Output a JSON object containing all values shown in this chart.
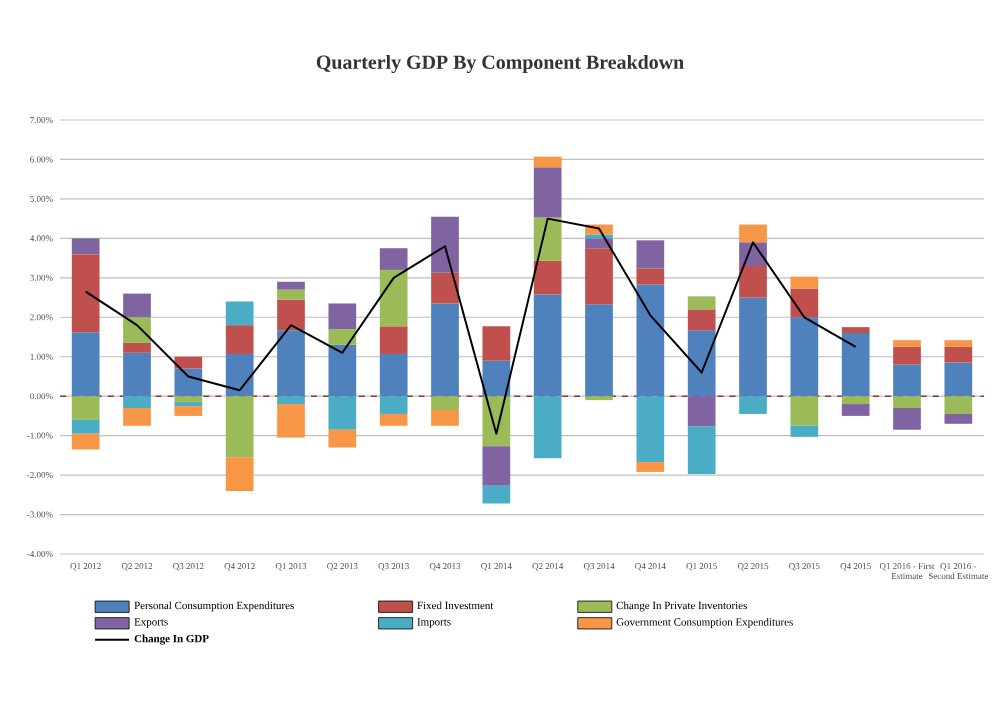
{
  "chart_data": {
    "type": "bar",
    "stacked": true,
    "title": "Quarterly GDP By Component Breakdown",
    "categories": [
      "Q1 2012",
      "Q2 2012",
      "Q3 2012",
      "Q4 2012",
      "Q1 2013",
      "Q2 2013",
      "Q3 2013",
      "Q4 2013",
      "Q1 2014",
      "Q2 2014",
      "Q3 2014",
      "Q4 2014",
      "Q1 2015",
      "Q2 2015",
      "Q3 2015",
      "Q4 2015",
      "Q1 2016 - First Estimate",
      "Q1 2016 - Second Estimate"
    ],
    "series": [
      {
        "name": "Personal Consumption Expenditures",
        "color": "#4f81bd",
        "values": [
          1.62,
          1.1,
          0.7,
          1.07,
          1.67,
          1.3,
          1.07,
          2.35,
          0.9,
          2.58,
          2.33,
          2.83,
          1.67,
          2.5,
          2.0,
          1.6,
          0.8,
          0.85
        ]
      },
      {
        "name": "Fixed Investment",
        "color": "#c0504d",
        "values": [
          1.98,
          0.25,
          0.3,
          0.73,
          0.78,
          null,
          0.7,
          0.78,
          0.87,
          0.85,
          1.42,
          0.41,
          0.53,
          0.8,
          0.73,
          0.15,
          0.45,
          0.4
        ]
      },
      {
        "name": "Change In Private Inventories",
        "color": "#9bbb59",
        "values": [
          -0.6,
          0.65,
          -0.15,
          -1.55,
          0.25,
          0.4,
          1.43,
          -0.35,
          -1.27,
          1.1,
          -0.1,
          null,
          0.33,
          null,
          -0.75,
          -0.2,
          -0.3,
          -0.45
        ]
      },
      {
        "name": "Exports",
        "color": "#8064a2",
        "values": [
          0.4,
          0.6,
          null,
          null,
          0.2,
          0.65,
          0.55,
          1.42,
          -1.0,
          1.27,
          0.25,
          0.71,
          -0.77,
          0.6,
          null,
          -0.3,
          -0.55,
          -0.25
        ]
      },
      {
        "name": "Imports",
        "color": "#4bacc6",
        "values": [
          -0.35,
          -0.3,
          -0.1,
          0.6,
          -0.2,
          -0.85,
          -0.45,
          null,
          -0.45,
          -1.57,
          0.1,
          -1.67,
          -1.2,
          -0.45,
          -0.28,
          null,
          null,
          null
        ]
      },
      {
        "name": "Government Consumption Expenditures",
        "color": "#f79646",
        "values": [
          -0.4,
          -0.45,
          -0.25,
          -0.85,
          -0.85,
          -0.45,
          -0.3,
          -0.4,
          null,
          0.27,
          0.25,
          -0.25,
          null,
          0.45,
          0.3,
          null,
          0.17,
          0.17
        ]
      },
      {
        "name": "Change In GDP",
        "type": "line",
        "color": "#000000",
        "values": [
          2.65,
          1.8,
          0.5,
          0.15,
          1.8,
          1.1,
          3.0,
          3.8,
          -0.95,
          4.5,
          4.25,
          2.05,
          0.6,
          3.9,
          2.0,
          1.25,
          null,
          null
        ]
      }
    ],
    "ylim": [
      -4,
      7
    ],
    "yticks": [
      {
        "value": -4,
        "label": "-4.00%"
      },
      {
        "value": -3,
        "label": "-3.00%"
      },
      {
        "value": -2,
        "label": "-2.00%"
      },
      {
        "value": -1,
        "label": "-1.00%"
      },
      {
        "value": 0,
        "label": "0.00%"
      },
      {
        "value": 1,
        "label": "1.00%"
      },
      {
        "value": 2,
        "label": "2.00%"
      },
      {
        "value": 3,
        "label": "3.00%"
      },
      {
        "value": 4,
        "label": "4.00%"
      },
      {
        "value": 5,
        "label": "5.00%"
      },
      {
        "value": 6,
        "label": "6.00%"
      },
      {
        "value": 7,
        "label": "7.00%"
      }
    ],
    "grid": "y",
    "legend": "bottom",
    "ref_lines": [
      {
        "axis": "y",
        "value": 0,
        "color": "#953735",
        "line_style": "dashed"
      }
    ]
  }
}
